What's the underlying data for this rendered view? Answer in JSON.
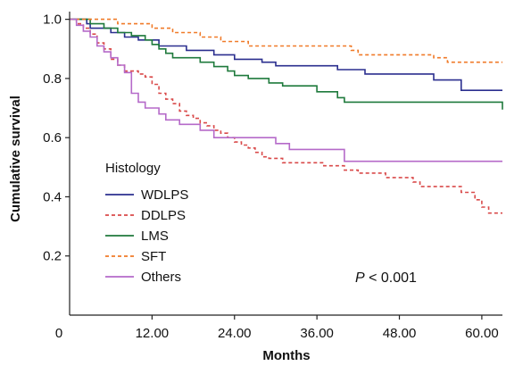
{
  "chart_data": {
    "type": "line",
    "subtype": "kaplan-meier step",
    "xlabel": "Months",
    "ylabel": "Cumulative survival",
    "xlim": [
      0,
      63
    ],
    "ylim": [
      0,
      1.02
    ],
    "xticks": [
      0,
      12,
      24,
      36,
      48,
      60
    ],
    "xtick_labels": [
      "0",
      "12.00",
      "24.00",
      "36.00",
      "48.00",
      "60.00"
    ],
    "yticks": [
      0.2,
      0.4,
      0.6,
      0.8,
      1.0
    ],
    "ytick_labels": [
      "0.2",
      "0.4",
      "0.6",
      "0.8",
      "1.0"
    ],
    "grid": false,
    "legend": {
      "title": "Histology",
      "placement": "left-lower"
    },
    "annotation": {
      "italic": "P",
      "text": " < 0.001"
    },
    "series": [
      {
        "name": "WDLPS",
        "color": "#2b2f8f",
        "dashed": false,
        "points": [
          [
            0,
            1.0
          ],
          [
            2.5,
            0.985
          ],
          [
            3,
            0.97
          ],
          [
            6,
            0.955
          ],
          [
            8,
            0.94
          ],
          [
            10,
            0.93
          ],
          [
            13,
            0.91
          ],
          [
            17,
            0.895
          ],
          [
            21,
            0.88
          ],
          [
            24,
            0.865
          ],
          [
            28,
            0.855
          ],
          [
            30,
            0.843
          ],
          [
            39,
            0.83
          ],
          [
            43,
            0.815
          ],
          [
            53,
            0.795
          ],
          [
            57,
            0.76
          ],
          [
            63,
            0.76
          ]
        ]
      },
      {
        "name": "DDLPS",
        "color": "#d94a4a",
        "dashed": true,
        "points": [
          [
            0,
            1.0
          ],
          [
            1,
            0.985
          ],
          [
            2,
            0.97
          ],
          [
            3,
            0.95
          ],
          [
            4,
            0.92
          ],
          [
            5,
            0.9
          ],
          [
            6,
            0.865
          ],
          [
            7,
            0.845
          ],
          [
            8,
            0.825
          ],
          [
            10,
            0.815
          ],
          [
            11,
            0.805
          ],
          [
            12,
            0.78
          ],
          [
            13,
            0.75
          ],
          [
            14,
            0.73
          ],
          [
            15,
            0.715
          ],
          [
            16,
            0.69
          ],
          [
            17,
            0.675
          ],
          [
            18,
            0.665
          ],
          [
            19,
            0.65
          ],
          [
            20,
            0.64
          ],
          [
            21,
            0.625
          ],
          [
            22,
            0.615
          ],
          [
            23,
            0.6
          ],
          [
            24,
            0.585
          ],
          [
            25,
            0.575
          ],
          [
            26,
            0.565
          ],
          [
            27,
            0.55
          ],
          [
            28,
            0.535
          ],
          [
            29,
            0.53
          ],
          [
            31,
            0.515
          ],
          [
            37,
            0.505
          ],
          [
            40,
            0.49
          ],
          [
            42,
            0.48
          ],
          [
            46,
            0.465
          ],
          [
            50,
            0.45
          ],
          [
            51,
            0.435
          ],
          [
            57,
            0.415
          ],
          [
            59,
            0.39
          ],
          [
            60,
            0.365
          ],
          [
            61,
            0.345
          ],
          [
            63,
            0.345
          ]
        ]
      },
      {
        "name": "LMS",
        "color": "#1f7a3c",
        "dashed": false,
        "points": [
          [
            0,
            1.0
          ],
          [
            3,
            0.985
          ],
          [
            5,
            0.97
          ],
          [
            7,
            0.955
          ],
          [
            9,
            0.945
          ],
          [
            11,
            0.93
          ],
          [
            12,
            0.915
          ],
          [
            13,
            0.9
          ],
          [
            14,
            0.885
          ],
          [
            15,
            0.87
          ],
          [
            19,
            0.855
          ],
          [
            21,
            0.84
          ],
          [
            23,
            0.825
          ],
          [
            24,
            0.81
          ],
          [
            26,
            0.8
          ],
          [
            29,
            0.785
          ],
          [
            31,
            0.775
          ],
          [
            36,
            0.755
          ],
          [
            39,
            0.735
          ],
          [
            40,
            0.72
          ],
          [
            63,
            0.72
          ],
          [
            63,
            0.695
          ]
        ]
      },
      {
        "name": "SFT",
        "color": "#f07a28",
        "dashed": true,
        "points": [
          [
            0,
            1.0
          ],
          [
            7,
            0.985
          ],
          [
            12,
            0.97
          ],
          [
            15,
            0.955
          ],
          [
            19,
            0.94
          ],
          [
            22,
            0.925
          ],
          [
            26,
            0.91
          ],
          [
            41,
            0.895
          ],
          [
            42,
            0.88
          ],
          [
            53,
            0.87
          ],
          [
            55,
            0.855
          ],
          [
            63,
            0.855
          ]
        ]
      },
      {
        "name": "Others",
        "color": "#b56ac9",
        "dashed": false,
        "points": [
          [
            0,
            1.0
          ],
          [
            1,
            0.98
          ],
          [
            2,
            0.96
          ],
          [
            3,
            0.94
          ],
          [
            4,
            0.91
          ],
          [
            5,
            0.89
          ],
          [
            6,
            0.87
          ],
          [
            7,
            0.845
          ],
          [
            8,
            0.82
          ],
          [
            9,
            0.75
          ],
          [
            10,
            0.72
          ],
          [
            11,
            0.7
          ],
          [
            13,
            0.68
          ],
          [
            14,
            0.66
          ],
          [
            16,
            0.645
          ],
          [
            19,
            0.625
          ],
          [
            21,
            0.6
          ],
          [
            30,
            0.58
          ],
          [
            32,
            0.56
          ],
          [
            40,
            0.52
          ],
          [
            63,
            0.52
          ]
        ]
      }
    ]
  }
}
